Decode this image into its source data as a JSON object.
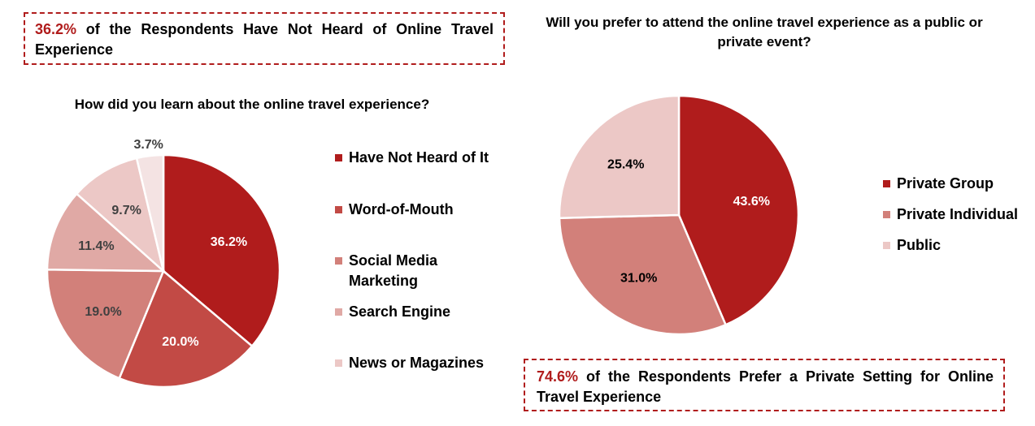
{
  "callouts": {
    "left": {
      "highlight": "36.2%",
      "text": " of the Respondents Have Not Heard of Online Travel Experience"
    },
    "right": {
      "highlight": "74.6%",
      "text": " of the Respondents Prefer a Private Setting for Online Travel Experience"
    }
  },
  "colors": {
    "accent": "#b01c1c",
    "slices": [
      "#b01c1c",
      "#c24a45",
      "#d2807a",
      "#e0a9a5",
      "#ecc8c6",
      "#f4e3e3"
    ]
  },
  "chart_data": [
    {
      "type": "pie",
      "title": "How did you learn about the online travel experience?",
      "categories": [
        "Have Not Heard of It",
        "Word-of-Mouth",
        "Social Media Marketing",
        "Search Engine",
        "News or Magazines",
        ""
      ],
      "legend": [
        "Have Not Heard of It",
        "Word-of-Mouth",
        "Social Media Marketing",
        "Search Engine",
        "News or Magazines"
      ],
      "values": [
        36.2,
        20.0,
        19.0,
        11.4,
        9.7,
        3.7
      ],
      "labels": [
        "36.2%",
        "20.0%",
        "19.0%",
        "11.4%",
        "9.7%",
        "3.7%"
      ],
      "legend_position": "right"
    },
    {
      "type": "pie",
      "title": "Will you prefer to attend the online travel experience as a public or private event?",
      "categories": [
        "Private Group",
        "Private Individual",
        "Public"
      ],
      "legend": [
        "Private Group",
        "Private Individual",
        "Public"
      ],
      "values": [
        43.6,
        31.0,
        25.4
      ],
      "labels": [
        "43.6%",
        "31.0%",
        "25.4%"
      ],
      "legend_position": "right"
    }
  ]
}
